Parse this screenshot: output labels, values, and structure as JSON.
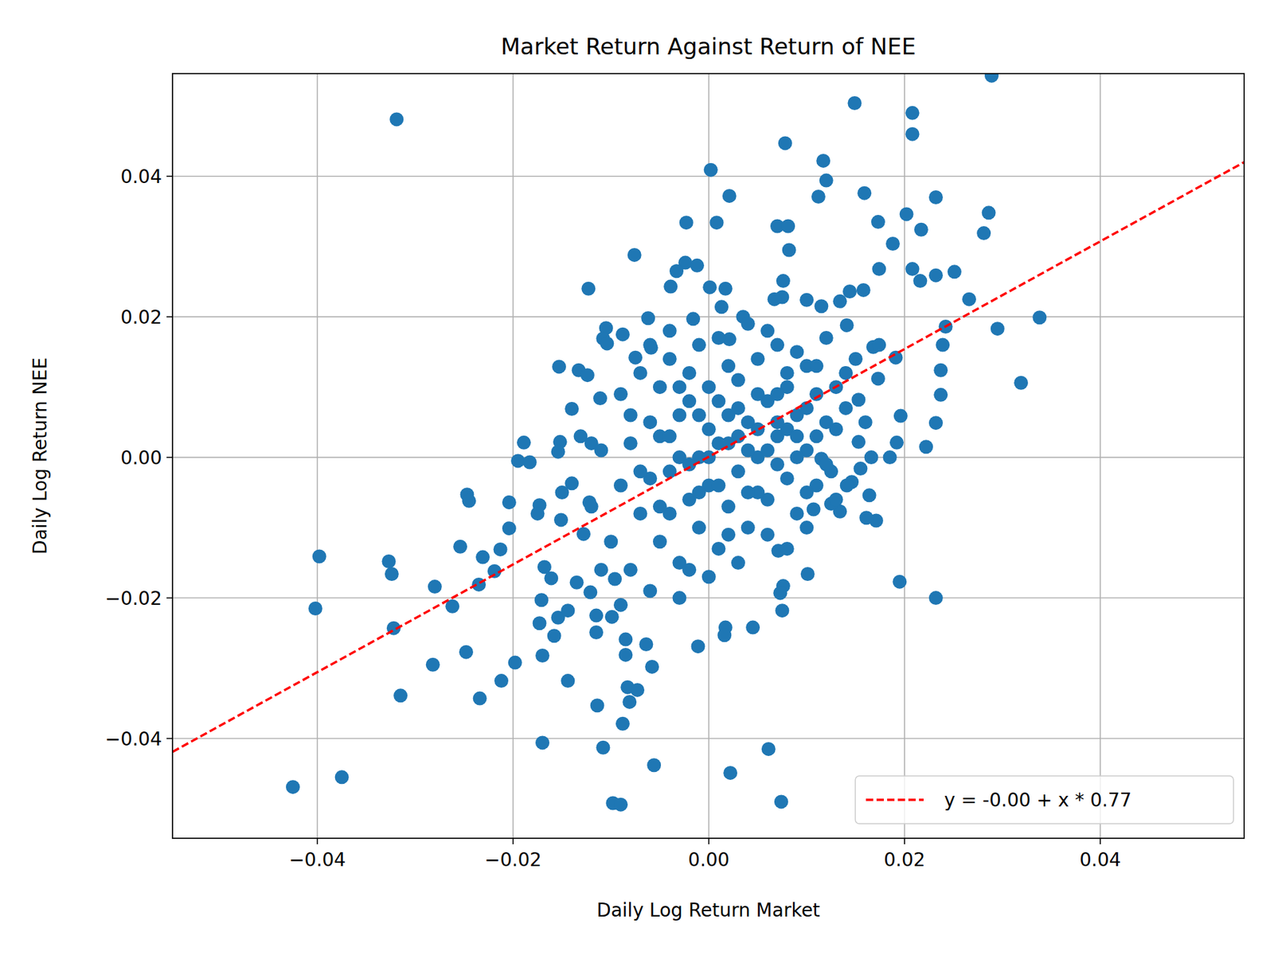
{
  "chart_data": {
    "type": "scatter",
    "title": "Market Return Against Return of NEE",
    "x_label": "Daily Log Return Market",
    "y_label": "Daily Log Return NEE",
    "xlim": [
      -0.0548,
      0.0547
    ],
    "ylim": [
      -0.0542,
      0.0546
    ],
    "xticks": [
      {
        "value": -0.04,
        "label": "−0.04"
      },
      {
        "value": -0.02,
        "label": "−0.02"
      },
      {
        "value": 0,
        "label": "0.00"
      },
      0.02,
      0.04
    ],
    "yticks": [
      {
        "value": -0.04,
        "label": "−0.04"
      },
      {
        "value": -0.02,
        "label": "−0.02"
      },
      {
        "value": 0,
        "label": "0.00"
      },
      0.02,
      0.04
    ],
    "grid": true,
    "legend": "lower right",
    "series": [
      {
        "type": "scatter",
        "color": "#1f77b4",
        "marker": "circle",
        "x": [
          -0.0319,
          0.0289,
          0.0149,
          0.0208,
          0.0208,
          0.0078,
          0.0002,
          0.0117,
          0.012,
          0.0112,
          0.0159,
          0.0021,
          0.0232,
          0.0286,
          0.0202,
          0.0173,
          0.0217,
          0.0281,
          -0.0023,
          0.0008,
          0.007,
          0.0081,
          0.0188,
          0.0082,
          -0.0076,
          0.0174,
          0.0208,
          0.0232,
          0.0251,
          -0.0024,
          -0.0012,
          -0.0033,
          0.0216,
          0.0076,
          -0.0123,
          -0.0039,
          0.0001,
          0.0017,
          0.0266,
          0.0338,
          0.0295,
          0.0319,
          0.0242,
          0.0239,
          0.0237,
          0.0237,
          0.0232,
          0.0222,
          0.0196,
          0.0192,
          0.0185,
          0.0195,
          0.0232,
          0.0166,
          0.0171,
          0.0161,
          0.0164,
          0.0155,
          0.0101,
          0.0076,
          0.0073,
          0.0075,
          0.0071,
          0.0045,
          0.0017,
          0.0016,
          0.0022,
          0.0061,
          0.0074,
          -0.0011,
          -0.0056,
          -0.0098,
          -0.009,
          -0.0088,
          -0.0108,
          -0.017,
          -0.0114,
          -0.0081,
          -0.0083,
          -0.0073,
          -0.0058,
          -0.0064,
          -0.0085,
          -0.0085,
          -0.0144,
          -0.017,
          -0.0198,
          -0.0212,
          -0.0234,
          -0.0248,
          -0.0282,
          -0.0315,
          -0.0375,
          -0.0425,
          -0.0402,
          -0.0398,
          -0.0327,
          -0.0324,
          -0.0322,
          -0.028,
          -0.0262,
          -0.0254,
          -0.0247,
          -0.0245,
          -0.0231,
          -0.0219,
          -0.0235,
          -0.0213,
          -0.0204,
          -0.0204,
          -0.0195,
          -0.0189,
          -0.0183,
          -0.0153,
          -0.0133,
          -0.0124,
          -0.014,
          -0.0152,
          -0.0154,
          -0.0131,
          -0.012,
          -0.0111,
          -0.0105,
          -0.0108,
          -0.0104,
          -0.0062,
          -0.0075,
          -0.0059,
          -0.0088,
          -0.0016,
          0.0035,
          0.0021,
          0.0013,
          0.0075,
          0.0067,
          0.01,
          0.0115,
          0.0134,
          0.0144,
          0.0158,
          0.0141,
          0.0168,
          0.0174,
          0.0191,
          0.0173,
          0.0153,
          0.0153,
          0.0146,
          0.0141,
          0.0134,
          0.0125,
          0.0107,
          0.0115,
          0.0125,
          -0.0173,
          -0.0175,
          -0.0171,
          -0.0173,
          -0.0168,
          -0.0158,
          -0.0154,
          -0.0144,
          -0.0135,
          -0.0151,
          -0.0161,
          -0.014,
          -0.015,
          -0.0128,
          -0.0121,
          -0.0115,
          -0.0115,
          -0.0099,
          -0.0096,
          -0.0122,
          -0.009,
          -0.008,
          -0.007,
          -0.006,
          -0.005,
          -0.005,
          -0.004,
          -0.004,
          -0.003,
          -0.003,
          -0.002,
          -0.002,
          -0.001,
          -0.001,
          0.0,
          0.0,
          0.001,
          0.001,
          0.002,
          0.002,
          0.003,
          0.003,
          0.004,
          0.004,
          0.005,
          0.005,
          0.006,
          0.006,
          0.007,
          0.007,
          0.008,
          0.008,
          0.009,
          0.009,
          0.01,
          0.01,
          0.011,
          0.011,
          0.012,
          0.012,
          -0.01,
          -0.009,
          -0.008,
          -0.007,
          -0.006,
          -0.006,
          -0.005,
          -0.004,
          -0.004,
          -0.003,
          -0.003,
          -0.002,
          -0.002,
          -0.001,
          -0.001,
          0.0,
          0.0,
          0.001,
          0.001,
          0.002,
          0.002,
          0.003,
          0.003,
          0.004,
          0.004,
          0.005,
          0.005,
          0.006,
          0.006,
          0.007,
          0.007,
          0.008,
          0.008,
          0.009,
          0.009,
          0.01,
          0.01,
          0.011,
          0.012,
          0.013,
          -0.012,
          -0.011,
          -0.011,
          -0.009,
          -0.008,
          -0.007,
          -0.006,
          -0.005,
          -0.004,
          -0.003,
          -0.002,
          -0.001,
          0.0,
          0.001,
          0.002,
          0.003,
          0.004,
          0.005,
          0.006,
          0.007,
          0.008,
          0.009,
          0.01,
          0.011,
          0.013,
          0.014,
          0.014,
          0.015,
          0.013,
          0.016
        ],
        "values": [
          0.0481,
          0.0543,
          0.0504,
          0.049,
          0.046,
          0.0447,
          0.0409,
          0.0422,
          0.0394,
          0.0371,
          0.0376,
          0.0372,
          0.037,
          0.0348,
          0.0346,
          0.0335,
          0.0324,
          0.0319,
          0.0334,
          0.0334,
          0.0329,
          0.0329,
          0.0304,
          0.0295,
          0.0288,
          0.0268,
          0.0268,
          0.0259,
          0.0264,
          0.0277,
          0.0273,
          0.0265,
          0.0251,
          0.0251,
          0.024,
          0.0243,
          0.0242,
          0.024,
          0.0225,
          0.0199,
          0.0183,
          0.0106,
          0.0186,
          0.016,
          0.0124,
          0.0089,
          0.0049,
          0.0015,
          0.0059,
          0.0021,
          0.0,
          -0.0177,
          -0.02,
          0.0,
          -0.009,
          -0.0086,
          -0.0054,
          -0.0016,
          -0.0166,
          -0.0183,
          -0.0193,
          -0.0218,
          -0.0133,
          -0.0242,
          -0.0242,
          -0.0253,
          -0.0449,
          -0.0415,
          -0.049,
          -0.0269,
          -0.0438,
          -0.0492,
          -0.0494,
          -0.0379,
          -0.0413,
          -0.0406,
          -0.0353,
          -0.0348,
          -0.0327,
          -0.0331,
          -0.0298,
          -0.0266,
          -0.0281,
          -0.0259,
          -0.0318,
          -0.0282,
          -0.0292,
          -0.0318,
          -0.0343,
          -0.0277,
          -0.0295,
          -0.0339,
          -0.0455,
          -0.0469,
          -0.0215,
          -0.0141,
          -0.0148,
          -0.0166,
          -0.0243,
          -0.0184,
          -0.0212,
          -0.0127,
          -0.0053,
          -0.0062,
          -0.0142,
          -0.0162,
          -0.0181,
          -0.0131,
          -0.0101,
          -0.0064,
          -0.0005,
          0.0021,
          -0.0007,
          0.0129,
          0.0124,
          0.0117,
          0.0069,
          0.0022,
          0.0008,
          0.003,
          0.002,
          0.0084,
          0.0184,
          0.0169,
          0.0162,
          0.0198,
          0.0142,
          0.0156,
          0.0175,
          0.0197,
          0.02,
          0.0168,
          0.0214,
          0.0228,
          0.0225,
          0.0224,
          0.0215,
          0.0222,
          0.0236,
          0.0238,
          0.0188,
          0.0157,
          0.016,
          0.0142,
          0.0112,
          0.0082,
          0.0022,
          -0.0035,
          -0.004,
          -0.0077,
          -0.0066,
          -0.0074,
          -0.0002,
          -0.002,
          -0.0068,
          -0.008,
          -0.0203,
          -0.0236,
          -0.0156,
          -0.0254,
          -0.0228,
          -0.0218,
          -0.0178,
          -0.0089,
          -0.0172,
          -0.0037,
          -0.005,
          -0.0109,
          -0.0192,
          -0.0225,
          -0.0249,
          -0.0227,
          -0.0173,
          -0.0064,
          -0.004,
          0.002,
          -0.008,
          0.005,
          -0.012,
          0.01,
          -0.002,
          0.014,
          -0.015,
          0.006,
          -0.006,
          0.012,
          0.0,
          -0.01,
          0.004,
          -0.004,
          0.008,
          -0.013,
          0.002,
          -0.007,
          0.011,
          -0.002,
          0.005,
          -0.01,
          0.014,
          0.0,
          0.008,
          -0.006,
          0.003,
          0.016,
          -0.003,
          0.01,
          0.006,
          -0.008,
          0.013,
          0.001,
          0.009,
          -0.004,
          0.017,
          0.005,
          -0.012,
          0.009,
          -0.016,
          0.012,
          -0.003,
          -0.019,
          0.003,
          -0.008,
          0.018,
          0.0,
          -0.02,
          0.008,
          -0.016,
          0.016,
          -0.005,
          0.01,
          -0.017,
          0.002,
          0.017,
          -0.011,
          0.013,
          -0.015,
          0.007,
          0.001,
          0.019,
          -0.005,
          0.009,
          -0.011,
          0.018,
          -0.001,
          0.009,
          0.004,
          -0.013,
          0.015,
          0.0,
          -0.005,
          0.007,
          0.013,
          -0.001,
          0.01,
          -0.007,
          0.001,
          -0.016,
          -0.021,
          0.006,
          -0.002,
          0.016,
          -0.007,
          0.003,
          0.01,
          -0.001,
          0.006,
          0.0,
          -0.004,
          0.006,
          0.003,
          -0.005,
          0.004,
          0.001,
          0.005,
          0.012,
          0.003,
          -0.01,
          0.003,
          0.004,
          0.007,
          0.012,
          0.014,
          -0.006,
          0.005
        ]
      },
      {
        "type": "line",
        "name": "y = -0.00 + x * 0.77",
        "color": "#ff0000",
        "line_style": "dashed",
        "x": [
          -0.0548,
          0.0547
        ],
        "values": [
          -0.0419,
          0.042
        ]
      }
    ]
  }
}
